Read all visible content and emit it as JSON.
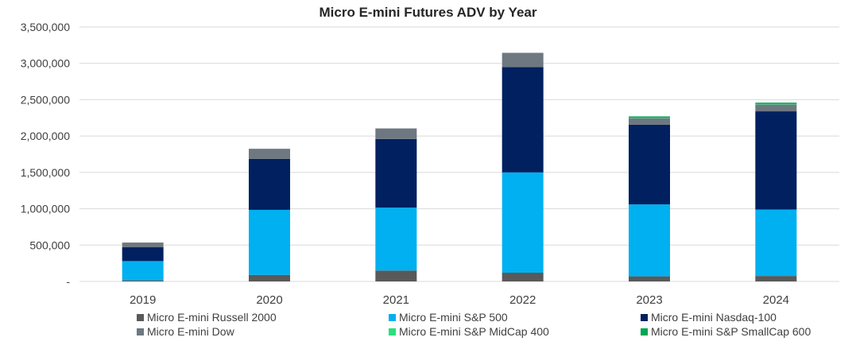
{
  "chart_data": {
    "type": "bar",
    "stacked": true,
    "title": "Micro E-mini Futures ADV by Year",
    "xlabel": "",
    "ylabel": "",
    "ylim": [
      0,
      3500000
    ],
    "y_ticks": [
      "-",
      "500,000",
      "1,000,000",
      "1,500,000",
      "2,000,000",
      "2,500,000",
      "3,000,000",
      "3,500,000"
    ],
    "y_tick_values": [
      0,
      500000,
      1000000,
      1500000,
      2000000,
      2500000,
      3000000,
      3500000
    ],
    "grid": true,
    "legend_position": "bottom",
    "categories": [
      "2019",
      "2020",
      "2021",
      "2022",
      "2023",
      "2024"
    ],
    "series": [
      {
        "name": "Micro E-mini Russell 2000",
        "color": "#595959",
        "values": [
          15000,
          90000,
          150000,
          120000,
          70000,
          75000
        ]
      },
      {
        "name": "Micro E-mini S&P 500",
        "color": "#00B0F0",
        "values": [
          265000,
          895000,
          865000,
          1380000,
          990000,
          915000
        ]
      },
      {
        "name": "Micro E-mini Nasdaq-100",
        "color": "#002060",
        "values": [
          190000,
          700000,
          945000,
          1450000,
          1095000,
          1350000
        ]
      },
      {
        "name": "Micro E-mini Dow",
        "color": "#6E7881",
        "values": [
          65000,
          140000,
          145000,
          195000,
          90000,
          95000
        ]
      },
      {
        "name": "Micro E-mini S&P MidCap 400",
        "color": "#29E07A",
        "values": [
          0,
          0,
          0,
          0,
          5000,
          10000
        ]
      },
      {
        "name": "Micro E-mini S&P SmallCap 600",
        "color": "#00A651",
        "values": [
          0,
          0,
          0,
          0,
          20000,
          15000
        ]
      }
    ]
  }
}
